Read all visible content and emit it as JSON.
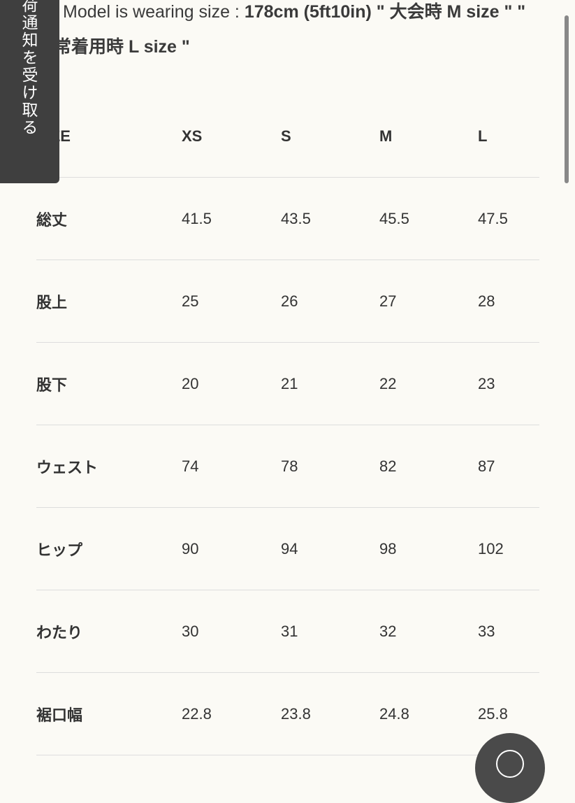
{
  "notify_tab": {
    "label": "入荷通知を受け取る"
  },
  "model_note": {
    "prefix": "Model is wearing size : ",
    "bold": "178cm (5ft10in) \" 大会時 M size \" \" 通常着用時 L size \""
  },
  "size_table": {
    "headers": [
      "SIZE",
      "XS",
      "S",
      "M",
      "L"
    ],
    "rows": [
      [
        "総丈",
        "41.5",
        "43.5",
        "45.5",
        "47.5"
      ],
      [
        "股上",
        "25",
        "26",
        "27",
        "28"
      ],
      [
        "股下",
        "20",
        "21",
        "22",
        "23"
      ],
      [
        "ウェスト",
        "74",
        "78",
        "82",
        "87"
      ],
      [
        "ヒップ",
        "90",
        "94",
        "98",
        "102"
      ],
      [
        "わたり",
        "30",
        "31",
        "32",
        "33"
      ],
      [
        "裾口幅",
        "22.8",
        "23.8",
        "24.8",
        "25.8"
      ]
    ]
  },
  "fab": {
    "icon": "chat-icon"
  }
}
